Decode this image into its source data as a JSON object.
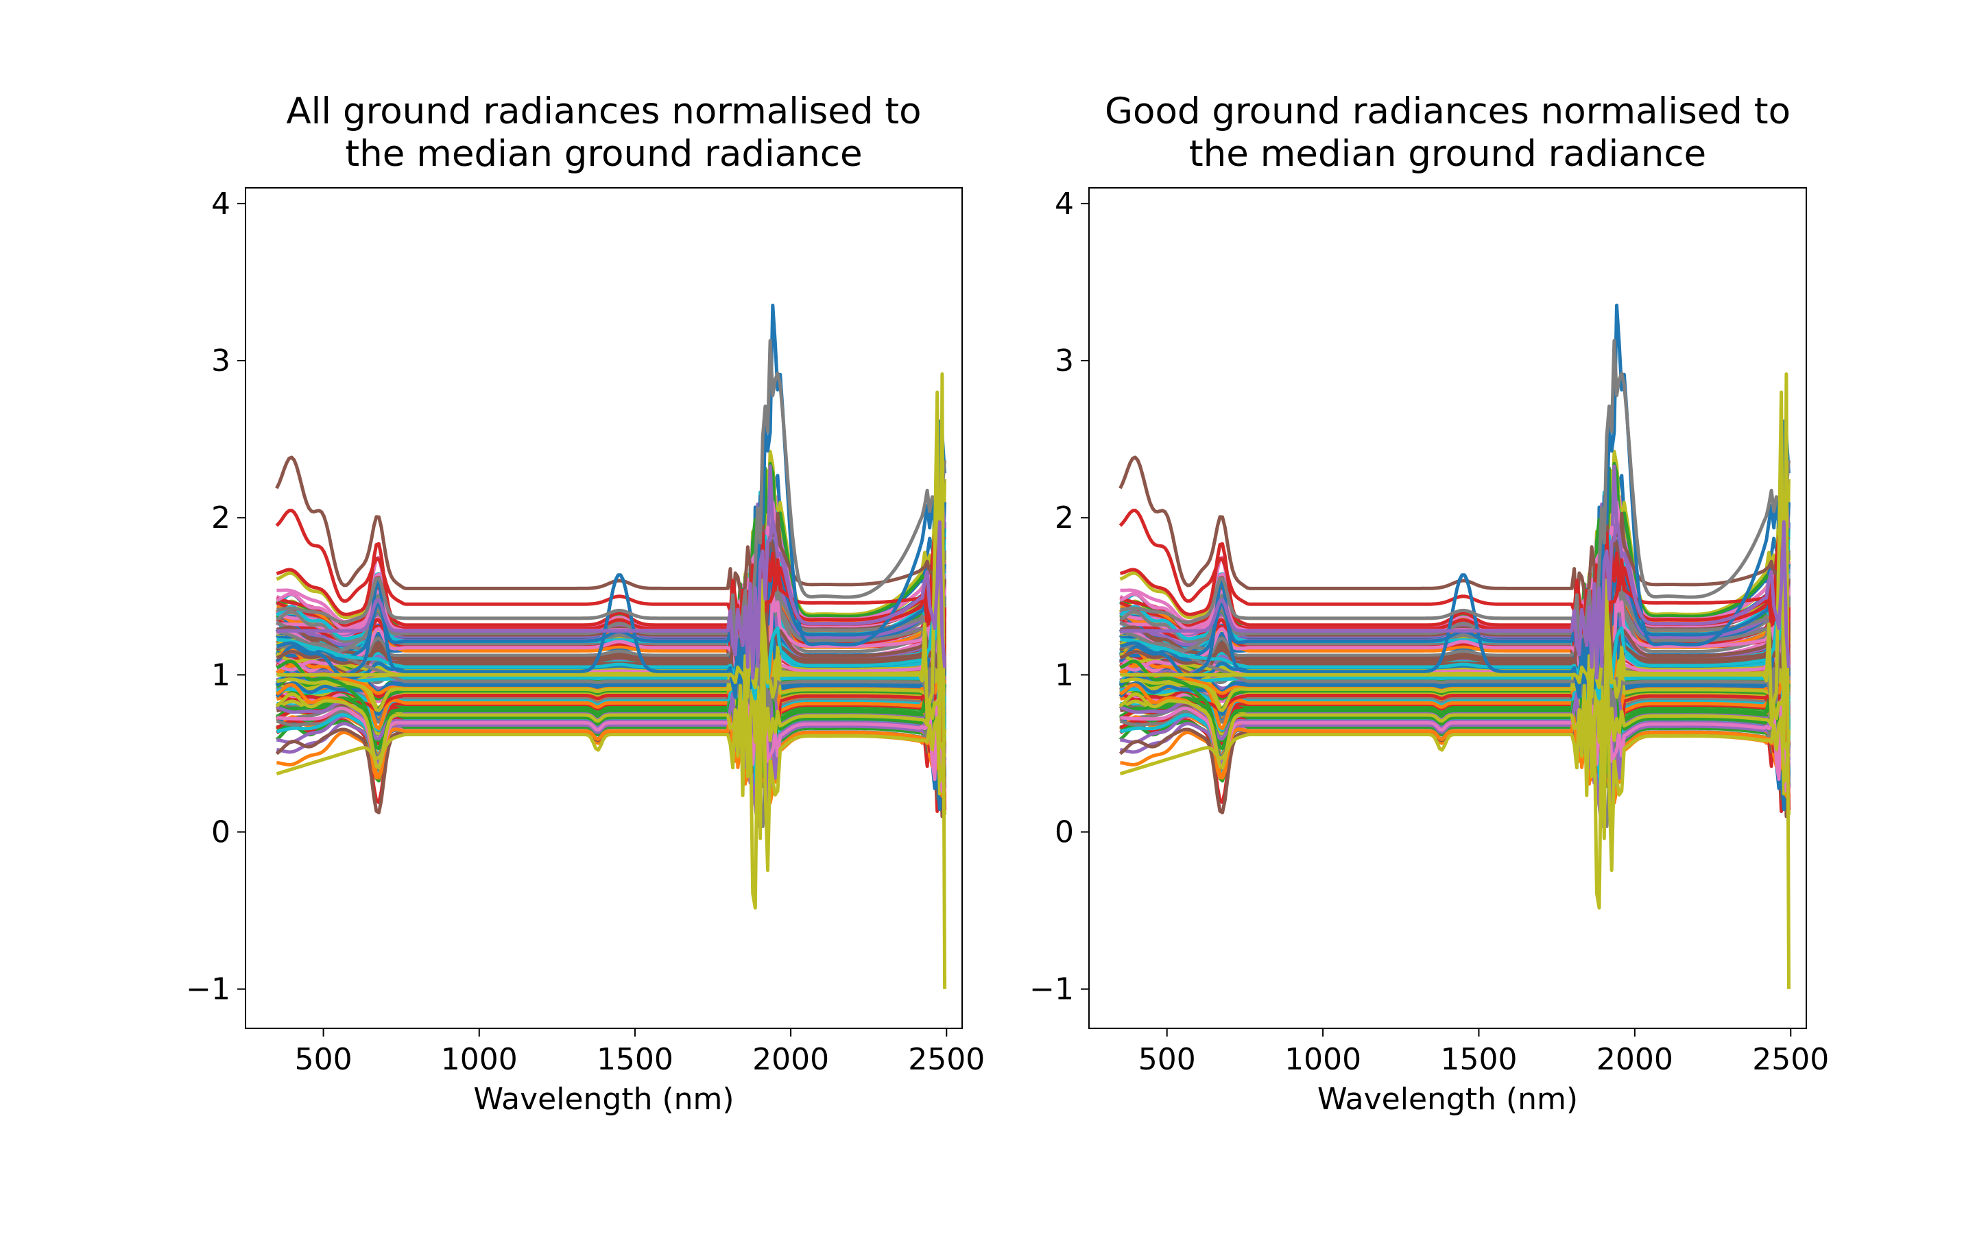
{
  "chart_data": [
    {
      "type": "line",
      "title_lines": [
        "All ground radiances normalised to",
        "the median ground radiance"
      ],
      "xlabel": "Wavelength (nm)",
      "ylabel": "",
      "xlim": [
        250,
        2550
      ],
      "ylim": [
        -1.25,
        4.1
      ],
      "xticks": [
        500,
        1000,
        1500,
        2000,
        2500
      ],
      "xtick_labels": [
        "500",
        "1000",
        "1500",
        "2000",
        "2500"
      ],
      "yticks": [
        -1,
        0,
        1,
        2,
        3,
        4
      ],
      "ytick_labels": [
        "−1",
        "0",
        "1",
        "2",
        "3",
        "4"
      ],
      "grid": false,
      "legend": "none",
      "note_series_count": 160
    },
    {
      "type": "line",
      "title_lines": [
        "Good ground radiances normalised to",
        "the median ground radiance"
      ],
      "xlabel": "Wavelength (nm)",
      "ylabel": "",
      "xlim": [
        250,
        2550
      ],
      "ylim": [
        -1.25,
        4.1
      ],
      "xticks": [
        500,
        1000,
        1500,
        2000,
        2500
      ],
      "xtick_labels": [
        "500",
        "1000",
        "1500",
        "2000",
        "2500"
      ],
      "yticks": [
        -1,
        0,
        1,
        2,
        3,
        4
      ],
      "ytick_labels": [
        "−1",
        "0",
        "1",
        "2",
        "3",
        "4"
      ],
      "grid": false,
      "legend": "none",
      "note_series_count": 160
    }
  ],
  "colors": [
    "#1f77b4",
    "#ff7f0e",
    "#2ca02c",
    "#d62728",
    "#9467bd",
    "#8c564b",
    "#e377c2",
    "#7f7f7f",
    "#bcbd22",
    "#17becf"
  ],
  "spectra": {
    "wavelength_start": 350,
    "wavelength_end": 2500,
    "highlighted": [
      {
        "color": "#8c564b",
        "base": 1.95,
        "tilt": 0.3
      },
      {
        "color": "#d62728",
        "base": 1.7,
        "tilt": 0.25
      },
      {
        "color": "#1f77b4",
        "base": 1.0,
        "peak2000": 2.2
      },
      {
        "color": "#7f7f7f",
        "base": 1.38,
        "peak2000": 1.9
      },
      {
        "color": "#bcbd22",
        "base": 0.42,
        "low": true
      }
    ]
  }
}
